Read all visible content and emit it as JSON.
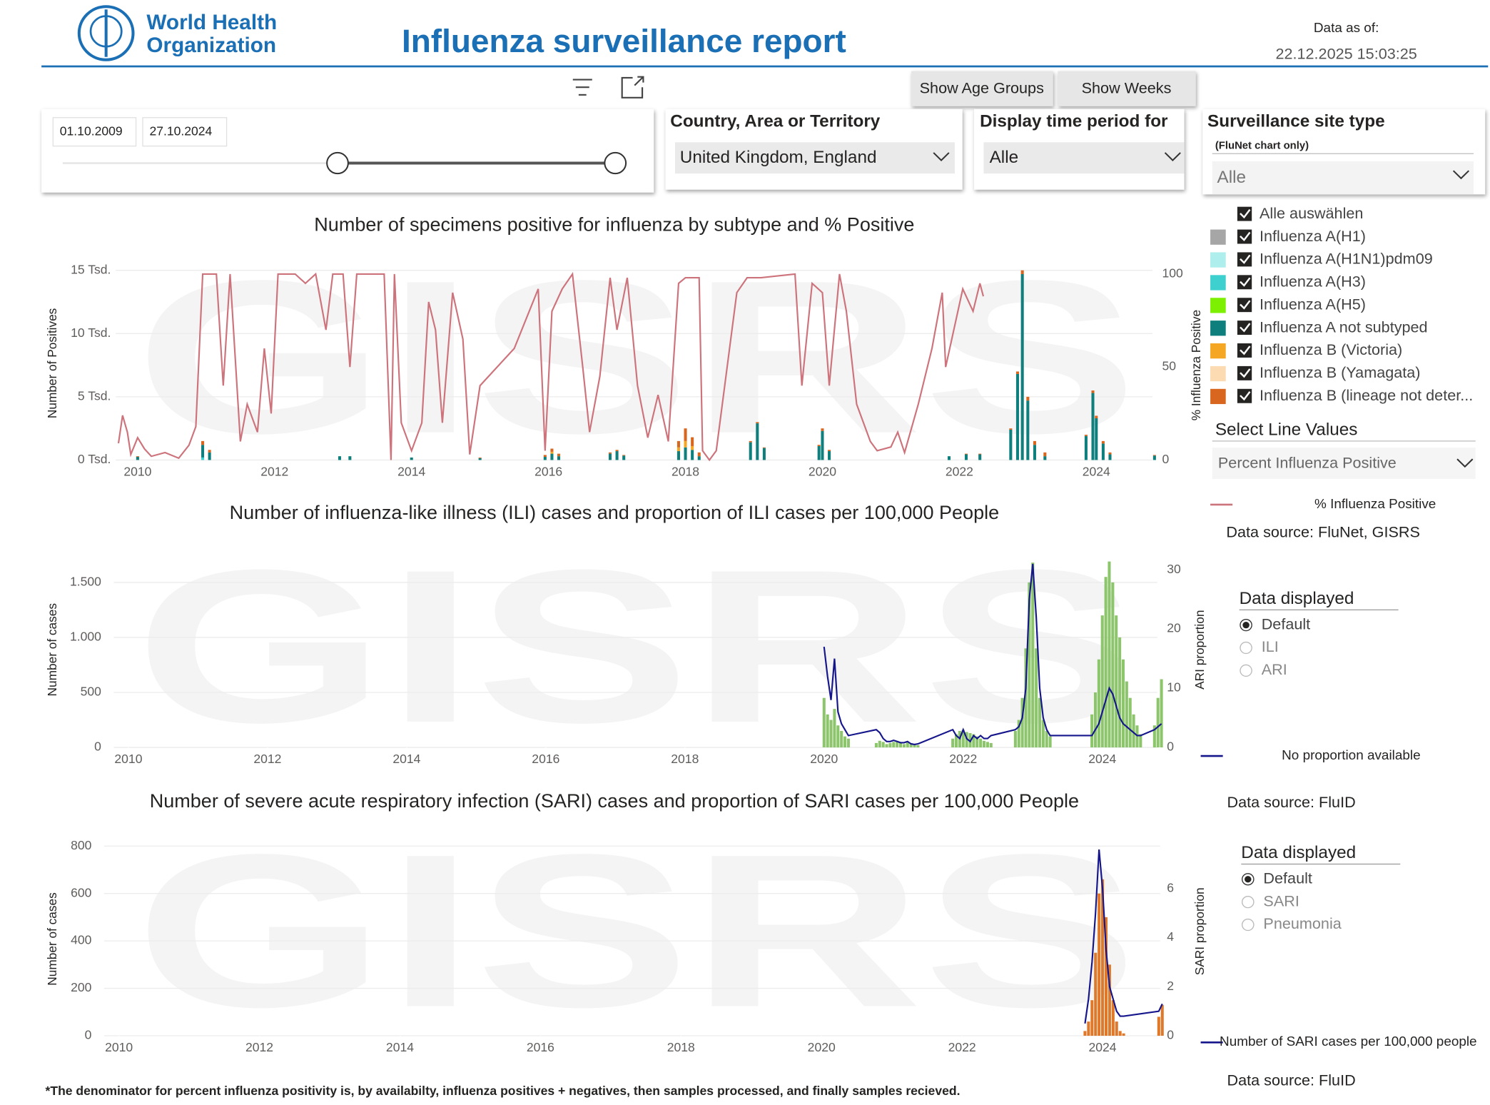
{
  "header": {
    "logo_line1": "World Health",
    "logo_line2": "Organization",
    "title": "Influenza surveillance report",
    "data_as_of_label": "Data as of:",
    "data_as_of": "22.12.2025 15:03:25"
  },
  "toolbar": {
    "show_age_groups": "Show Age Groups",
    "show_weeks": "Show Weeks"
  },
  "filters": {
    "date_start": "01.10.2009",
    "date_end": "27.10.2024",
    "country_label": "Country, Area or Territory",
    "country_value": "United Kingdom, England",
    "period_label": "Display time period for",
    "period_value": "Alle",
    "site_label": "Surveillance site type",
    "site_note": "(FluNet chart only)",
    "site_value": "Alle"
  },
  "subtype_slicer": {
    "select_all": "Alle auswählen"
  },
  "line_values": {
    "label": "Select Line Values",
    "value": "Percent Influenza Positive"
  },
  "ili_options": {
    "label": "Data displayed",
    "options": [
      "Default",
      "ILI",
      "ARI"
    ],
    "selected": 0
  },
  "sari_options": {
    "label": "Data displayed",
    "options": [
      "Default",
      "SARI",
      "Pneumonia"
    ],
    "selected": 0
  },
  "watermark": "GISRS",
  "footnote": "*The denominator for percent influenza positivity is, by availabilty, influenza positives + negatives, then samples processed, and finally samples recieved.",
  "chart_data": [
    {
      "type": "combo",
      "title": "Number of specimens positive for influenza by subtype and % Positive",
      "source": "Data source: FluNet, GISRS",
      "y_label": "Number of Positives",
      "y2_label": "% Influenza Positive",
      "grid": true,
      "xlim": [
        2009.68,
        2024.82
      ],
      "xticks": [
        2010,
        2012,
        2014,
        2016,
        2018,
        2020,
        2022,
        2024
      ],
      "ylim": [
        0,
        15000
      ],
      "yticks": [
        {
          "value": 0,
          "label": "0 Tsd."
        },
        {
          "value": 5000,
          "label": "5 Tsd."
        },
        {
          "value": 10000,
          "label": "10 Tsd."
        },
        {
          "value": 15000,
          "label": "15 Tsd."
        }
      ],
      "y2lim": [
        0,
        102
      ],
      "y2ticks": [
        0,
        50,
        100
      ],
      "x": [
        2010.0,
        2010.95,
        2011.05,
        2012.95,
        2013.1,
        2014.0,
        2015.0,
        2015.95,
        2016.05,
        2016.15,
        2016.9,
        2017.0,
        2017.1,
        2017.9,
        2018.0,
        2018.1,
        2018.2,
        2018.95,
        2019.05,
        2019.15,
        2019.95,
        2020.0,
        2020.1,
        2021.85,
        2022.1,
        2022.3,
        2022.75,
        2022.85,
        2022.92,
        2023.0,
        2023.1,
        2023.25,
        2023.85,
        2023.95,
        2024.0,
        2024.1,
        2024.2,
        2024.85
      ],
      "series": [
        {
          "name": "Influenza A(H1)",
          "color": "#a6a6a6",
          "values": [
            0,
            0,
            0,
            0,
            0,
            0,
            0,
            0,
            0,
            0,
            0,
            0,
            0,
            0,
            0,
            0,
            0,
            0,
            0,
            0,
            0,
            0,
            0,
            0,
            0,
            0,
            0,
            0,
            0,
            0,
            0,
            0,
            0,
            0,
            0,
            0,
            0,
            0
          ]
        },
        {
          "name": "Influenza A(H1N1)pdm09",
          "color": "#aeeeec",
          "values": [
            0,
            0,
            0,
            0,
            0,
            0,
            0,
            0,
            0,
            0,
            0,
            0,
            0,
            0,
            0,
            0,
            0,
            0,
            0,
            0,
            0,
            0,
            0,
            0,
            0,
            0,
            0,
            0,
            0,
            0,
            0,
            0,
            0,
            0,
            0,
            0,
            0,
            0
          ]
        },
        {
          "name": "Influenza A(H3)",
          "color": "#3ecfcf",
          "values": [
            0,
            200,
            0,
            0,
            0,
            0,
            0,
            0,
            0,
            0,
            0,
            0,
            0,
            0,
            0,
            0,
            0,
            0,
            0,
            0,
            0,
            0,
            0,
            0,
            0,
            0,
            0,
            0,
            0,
            0,
            0,
            0,
            0,
            0,
            0,
            0,
            0,
            0
          ]
        },
        {
          "name": "Influenza A(H5)",
          "color": "#7cf000",
          "values": [
            0,
            0,
            0,
            0,
            0,
            0,
            0,
            0,
            0,
            0,
            0,
            0,
            0,
            0,
            0,
            0,
            0,
            0,
            0,
            0,
            0,
            0,
            0,
            0,
            0,
            0,
            0,
            0,
            0,
            0,
            0,
            0,
            0,
            0,
            0,
            0,
            0,
            0
          ]
        },
        {
          "name": "Influenza A not subtyped",
          "color": "#0e7f7c",
          "values": [
            250,
            1000,
            600,
            300,
            300,
            200,
            150,
            250,
            500,
            300,
            500,
            700,
            350,
            700,
            1000,
            800,
            300,
            1400,
            2900,
            950,
            1100,
            2300,
            700,
            300,
            450,
            450,
            2400,
            6800,
            14700,
            4700,
            1200,
            300,
            1900,
            5300,
            3300,
            1300,
            450,
            350
          ]
        },
        {
          "name": "Influenza B (Victoria)",
          "color": "#f5a623",
          "values": [
            0,
            0,
            0,
            0,
            0,
            0,
            0,
            0,
            150,
            0,
            0,
            0,
            0,
            300,
            500,
            300,
            0,
            0,
            0,
            0,
            0,
            0,
            0,
            0,
            0,
            0,
            0,
            0,
            0,
            0,
            0,
            0,
            0,
            0,
            0,
            0,
            0,
            0
          ]
        },
        {
          "name": "Influenza B (Yamagata)",
          "color": "#fcdab2",
          "values": [
            0,
            0,
            0,
            0,
            0,
            0,
            0,
            0,
            0,
            0,
            0,
            0,
            0,
            0,
            0,
            0,
            0,
            0,
            0,
            0,
            0,
            0,
            0,
            0,
            0,
            0,
            0,
            0,
            0,
            0,
            0,
            0,
            0,
            0,
            0,
            0,
            0,
            0
          ]
        },
        {
          "name": "Influenza B (lineage not deter...",
          "color": "#d9661f",
          "values": [
            50,
            300,
            200,
            0,
            0,
            0,
            50,
            150,
            250,
            200,
            100,
            100,
            50,
            500,
            1000,
            700,
            300,
            100,
            100,
            50,
            100,
            200,
            100,
            0,
            50,
            50,
            100,
            200,
            300,
            300,
            300,
            300,
            100,
            200,
            200,
            200,
            150,
            50
          ]
        },
        {
          "name": "% Influenza Positive",
          "color": "#cd737c",
          "kind": "line",
          "axis": "y2",
          "x": [
            2009.72,
            2009.78,
            2009.85,
            2009.9,
            2010.0,
            2010.1,
            2010.2,
            2010.4,
            2010.6,
            2010.75,
            2010.85,
            2010.95,
            2011.15,
            2011.25,
            2011.35,
            2011.5,
            2011.6,
            2011.75,
            2011.85,
            2011.95,
            2012.05,
            2012.3,
            2012.45,
            2012.6,
            2012.75,
            2012.85,
            2013.0,
            2013.1,
            2013.2,
            2013.6,
            2013.7,
            2013.75,
            2013.85,
            2014.0,
            2014.15,
            2014.25,
            2014.35,
            2014.45,
            2014.6,
            2014.75,
            2014.85,
            2015.0,
            2015.5,
            2015.85,
            2015.95,
            2016.05,
            2016.2,
            2016.35,
            2016.5,
            2016.6,
            2016.75,
            2016.9,
            2017.0,
            2017.15,
            2017.3,
            2017.45,
            2017.6,
            2017.75,
            2017.9,
            2018.0,
            2018.2,
            2018.25,
            2018.35,
            2018.45,
            2018.75,
            2018.9,
            2019.1,
            2019.6,
            2019.7,
            2019.85,
            2020.0,
            2020.1,
            2020.25,
            2020.35,
            2020.5,
            2020.7,
            2020.8,
            2021.0,
            2021.1,
            2021.2,
            2021.4,
            2021.6,
            2021.75,
            2021.8,
            2022.05,
            2022.2,
            2022.3,
            2022.35
          ],
          "values": [
            9,
            24,
            15,
            3,
            12,
            6,
            2,
            4,
            1,
            8,
            18,
            100,
            100,
            40,
            100,
            10,
            30,
            15,
            60,
            25,
            100,
            100,
            95,
            100,
            70,
            100,
            100,
            50,
            100,
            100,
            0,
            100,
            20,
            5,
            20,
            85,
            70,
            20,
            90,
            65,
            3,
            40,
            60,
            92,
            5,
            80,
            92,
            100,
            50,
            15,
            45,
            98,
            70,
            98,
            40,
            12,
            35,
            10,
            95,
            98,
            98,
            5,
            0,
            5,
            90,
            98,
            98,
            100,
            40,
            95,
            90,
            40,
            100,
            80,
            30,
            10,
            5,
            7,
            15,
            4,
            30,
            60,
            90,
            50,
            92,
            80,
            95,
            88
          ]
        }
      ]
    },
    {
      "type": "combo",
      "title": "Number of influenza-like illness (ILI) cases and proportion of ILI cases per 100,000 People",
      "source": "Data source: FluID",
      "y_label": "Number of cases",
      "y2_label": "ARI proportion",
      "grid": true,
      "xlim": [
        2009.79,
        2024.79
      ],
      "xticks": [
        2010,
        2012,
        2014,
        2016,
        2018,
        2020,
        2022,
        2024
      ],
      "ylim": [
        0,
        1690
      ],
      "yticks": [
        0,
        500,
        {
          "value": 1000,
          "label": "1.000"
        },
        {
          "value": 1500,
          "label": "1.500"
        }
      ],
      "y2lim": [
        0,
        31.4
      ],
      "y2ticks": [
        0,
        10,
        20,
        30
      ],
      "x": [
        2020.0,
        2020.05,
        2020.1,
        2020.15,
        2020.2,
        2020.25,
        2020.3,
        2020.35,
        2020.75,
        2020.8,
        2020.85,
        2020.9,
        2020.95,
        2021.0,
        2021.05,
        2021.1,
        2021.15,
        2021.2,
        2021.25,
        2021.3,
        2021.35,
        2021.85,
        2021.9,
        2021.95,
        2022.0,
        2022.05,
        2022.1,
        2022.15,
        2022.2,
        2022.25,
        2022.3,
        2022.35,
        2022.4,
        2022.75,
        2022.8,
        2022.85,
        2022.9,
        2022.95,
        2023.0,
        2023.05,
        2023.1,
        2023.15,
        2023.2,
        2023.25,
        2023.85,
        2023.9,
        2023.95,
        2024.0,
        2024.05,
        2024.1,
        2024.15,
        2024.2,
        2024.25,
        2024.3,
        2024.35,
        2024.4,
        2024.45,
        2024.5,
        2024.55,
        2024.75,
        2024.8,
        2024.85
      ],
      "series": [
        {
          "color": "#8cc56b",
          "values": [
            450,
            300,
            250,
            350,
            200,
            150,
            100,
            80,
            40,
            60,
            50,
            30,
            40,
            50,
            60,
            40,
            30,
            50,
            40,
            30,
            20,
            80,
            120,
            150,
            160,
            140,
            130,
            120,
            100,
            80,
            60,
            50,
            40,
            150,
            250,
            450,
            900,
            1500,
            1680,
            900,
            450,
            250,
            150,
            100,
            300,
            500,
            800,
            1200,
            1550,
            1690,
            1500,
            1200,
            1000,
            800,
            600,
            450,
            300,
            200,
            120,
            200,
            450,
            620
          ]
        },
        {
          "name": "No proportion available",
          "color": "#16168c",
          "kind": "line",
          "axis": "y2",
          "values": [
            17,
            12,
            8,
            15,
            6,
            4,
            3,
            2,
            3,
            2.5,
            1.5,
            1,
            1,
            1.2,
            1,
            0.8,
            0.8,
            1,
            0.6,
            0.5,
            0.6,
            3,
            2,
            1.5,
            3,
            1.5,
            1,
            2,
            1.5,
            2,
            1.5,
            1.5,
            2,
            3,
            3.5,
            5,
            10,
            25,
            31,
            22,
            10,
            5,
            3,
            2,
            2,
            3,
            4,
            6,
            8,
            10,
            9,
            7,
            5,
            4,
            3.5,
            3,
            2.5,
            2,
            2,
            3,
            3.5,
            4
          ]
        }
      ]
    },
    {
      "type": "combo",
      "title": "Number of severe acute respiratory infection (SARI) cases and proportion of SARI cases per 100,000 People",
      "source": "Data source: FluID",
      "y_label": "Number of cases",
      "y2_label": "SARI proportion",
      "grid": true,
      "xlim": [
        2009.79,
        2024.82
      ],
      "xticks": [
        2010,
        2012,
        2014,
        2016,
        2018,
        2020,
        2022,
        2024
      ],
      "ylim": [
        0,
        800
      ],
      "yticks": [
        0,
        200,
        400,
        600,
        800
      ],
      "y2lim": [
        0,
        7.74
      ],
      "y2ticks": [
        0,
        2,
        4,
        6
      ],
      "x": [
        2023.75,
        2023.8,
        2023.85,
        2023.9,
        2023.95,
        2024.0,
        2024.05,
        2024.1,
        2024.15,
        2024.2,
        2024.25,
        2024.3,
        2024.8,
        2024.85
      ],
      "series": [
        {
          "color": "#e0782a",
          "values": [
            20,
            60,
            150,
            350,
            600,
            660,
            500,
            300,
            150,
            60,
            20,
            10,
            80,
            130
          ]
        },
        {
          "name": "Number of SARI cases per 100,000 people",
          "color": "#16168c",
          "kind": "line",
          "axis": "y2",
          "values": [
            0.5,
            1.5,
            3,
            5,
            7.6,
            6,
            3.5,
            2,
            1.5,
            1,
            0.8,
            0.8,
            1,
            1.3
          ]
        }
      ]
    }
  ]
}
